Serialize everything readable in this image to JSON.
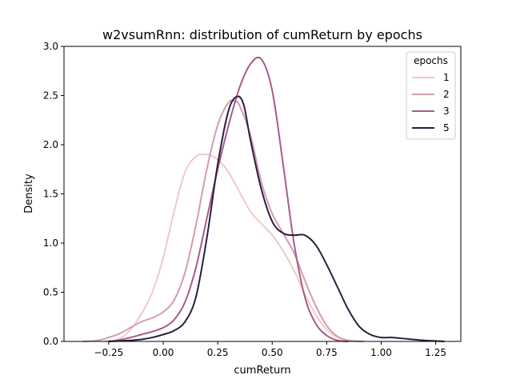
{
  "chart_data": {
    "type": "line",
    "title": "w2vsumRnn: distribution of cumReturn by epochs",
    "xlabel": "cumReturn",
    "ylabel": "Density",
    "xlim": [
      -0.455,
      1.365
    ],
    "ylim": [
      0,
      3.0
    ],
    "xticks": [
      -0.25,
      0.0,
      0.25,
      0.5,
      0.75,
      1.0,
      1.25
    ],
    "xtick_labels": [
      "−0.25",
      "0.00",
      "0.25",
      "0.50",
      "0.75",
      "1.00",
      "1.25"
    ],
    "yticks": [
      0.0,
      0.5,
      1.0,
      1.5,
      2.0,
      2.5,
      3.0
    ],
    "ytick_labels": [
      "0.0",
      "0.5",
      "1.0",
      "1.5",
      "2.0",
      "2.5",
      "3.0"
    ],
    "grid": false,
    "legend": {
      "title": "epochs",
      "placement": "top-right"
    },
    "series": [
      {
        "name": "1",
        "color": "#eccbc8",
        "x": [
          -0.27,
          -0.2,
          -0.15,
          -0.1,
          -0.05,
          0.0,
          0.05,
          0.1,
          0.15,
          0.2,
          0.25,
          0.3,
          0.35,
          0.4,
          0.45,
          0.5,
          0.55,
          0.6,
          0.65,
          0.7,
          0.75,
          0.8,
          0.85,
          0.9
        ],
        "y": [
          0.0,
          0.03,
          0.12,
          0.28,
          0.5,
          0.85,
          1.32,
          1.72,
          1.88,
          1.9,
          1.85,
          1.72,
          1.52,
          1.32,
          1.2,
          1.08,
          0.92,
          0.72,
          0.48,
          0.27,
          0.12,
          0.04,
          0.01,
          0.0
        ]
      },
      {
        "name": "2",
        "color": "#d29cb2",
        "x": [
          -0.37,
          -0.3,
          -0.25,
          -0.2,
          -0.15,
          -0.1,
          -0.05,
          0.0,
          0.05,
          0.1,
          0.15,
          0.2,
          0.25,
          0.3,
          0.33,
          0.35,
          0.4,
          0.45,
          0.5,
          0.55,
          0.6,
          0.65,
          0.7,
          0.75,
          0.8,
          0.85,
          0.92
        ],
        "y": [
          0.0,
          0.01,
          0.04,
          0.08,
          0.14,
          0.2,
          0.24,
          0.3,
          0.42,
          0.7,
          1.18,
          1.75,
          2.2,
          2.43,
          2.44,
          2.4,
          2.1,
          1.62,
          1.3,
          1.1,
          0.9,
          0.62,
          0.36,
          0.16,
          0.05,
          0.01,
          0.0
        ]
      },
      {
        "name": "3",
        "color": "#a65b8d",
        "x": [
          -0.23,
          -0.15,
          -0.1,
          -0.05,
          0.0,
          0.05,
          0.1,
          0.15,
          0.2,
          0.25,
          0.3,
          0.35,
          0.4,
          0.45,
          0.5,
          0.55,
          0.6,
          0.65,
          0.7,
          0.75,
          0.8,
          0.85
        ],
        "y": [
          0.0,
          0.04,
          0.07,
          0.1,
          0.14,
          0.22,
          0.4,
          0.75,
          1.25,
          1.75,
          2.2,
          2.58,
          2.82,
          2.87,
          2.55,
          1.8,
          1.0,
          0.45,
          0.18,
          0.06,
          0.01,
          0.0
        ]
      },
      {
        "name": "5",
        "color": "#2d1e3e",
        "x": [
          -0.25,
          -0.15,
          -0.1,
          -0.05,
          0.0,
          0.05,
          0.1,
          0.15,
          0.2,
          0.25,
          0.3,
          0.34,
          0.37,
          0.4,
          0.45,
          0.5,
          0.55,
          0.6,
          0.65,
          0.7,
          0.75,
          0.8,
          0.85,
          0.9,
          0.95,
          1.0,
          1.05,
          1.1,
          1.2,
          1.29
        ],
        "y": [
          0.0,
          0.01,
          0.02,
          0.04,
          0.07,
          0.11,
          0.2,
          0.45,
          1.05,
          1.8,
          2.35,
          2.49,
          2.4,
          2.05,
          1.55,
          1.22,
          1.1,
          1.08,
          1.08,
          0.98,
          0.78,
          0.55,
          0.32,
          0.15,
          0.07,
          0.04,
          0.04,
          0.03,
          0.01,
          0.0
        ]
      }
    ]
  }
}
